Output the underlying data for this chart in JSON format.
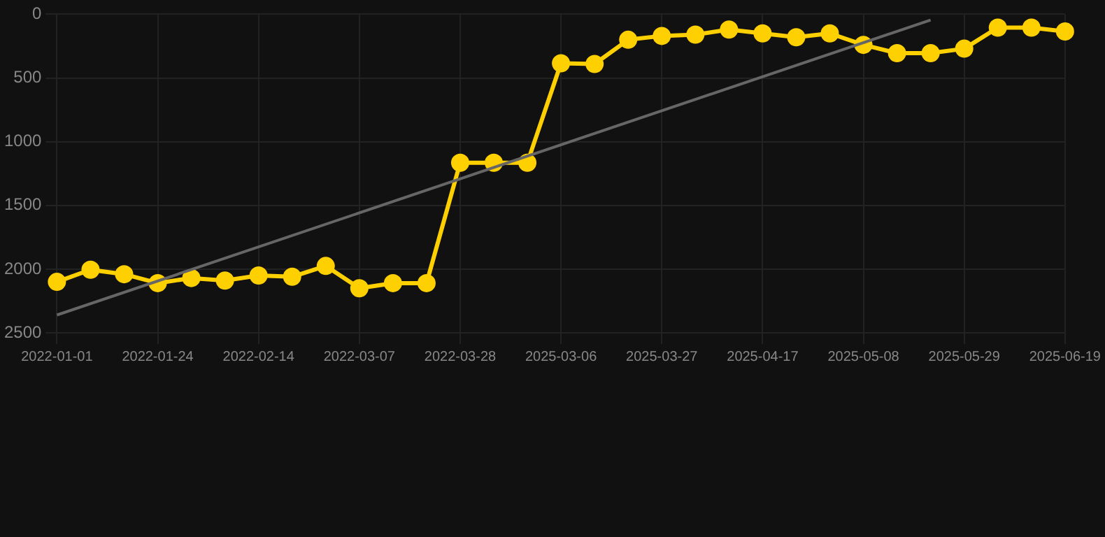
{
  "chart_data": {
    "type": "line",
    "categories": [
      "2022-01-01",
      null,
      null,
      "2022-01-24",
      null,
      null,
      "2022-02-14",
      null,
      null,
      "2022-03-07",
      null,
      null,
      "2022-03-28",
      null,
      null,
      "2025-03-06",
      null,
      null,
      "2025-03-27",
      null,
      null,
      "2025-04-17",
      null,
      null,
      "2025-05-08",
      null,
      null,
      "2025-05-29",
      null,
      null,
      "2025-06-19"
    ],
    "series": [
      {
        "color": "#ffd000",
        "marker": "circle",
        "values": [
          2100,
          2005,
          2040,
          2110,
          2070,
          2090,
          2050,
          2060,
          1975,
          2150,
          2110,
          2110,
          1165,
          1165,
          1165,
          385,
          390,
          200,
          170,
          160,
          120,
          150,
          180,
          150,
          240,
          305,
          305,
          270,
          105,
          105,
          135
        ]
      },
      {
        "type": "line",
        "color": "#666666",
        "marker": "none",
        "values": [
          2360,
          null,
          null,
          null,
          null,
          null,
          null,
          null,
          null,
          null,
          null,
          null,
          null,
          null,
          null,
          null,
          null,
          null,
          null,
          null,
          null,
          null,
          null,
          null,
          null,
          null,
          45,
          null,
          null,
          null,
          null
        ]
      }
    ],
    "ylim": [
      2500,
      0
    ],
    "yticks": [
      0,
      500,
      1000,
      1500,
      2000,
      2500
    ],
    "grid": true,
    "legend": false
  }
}
